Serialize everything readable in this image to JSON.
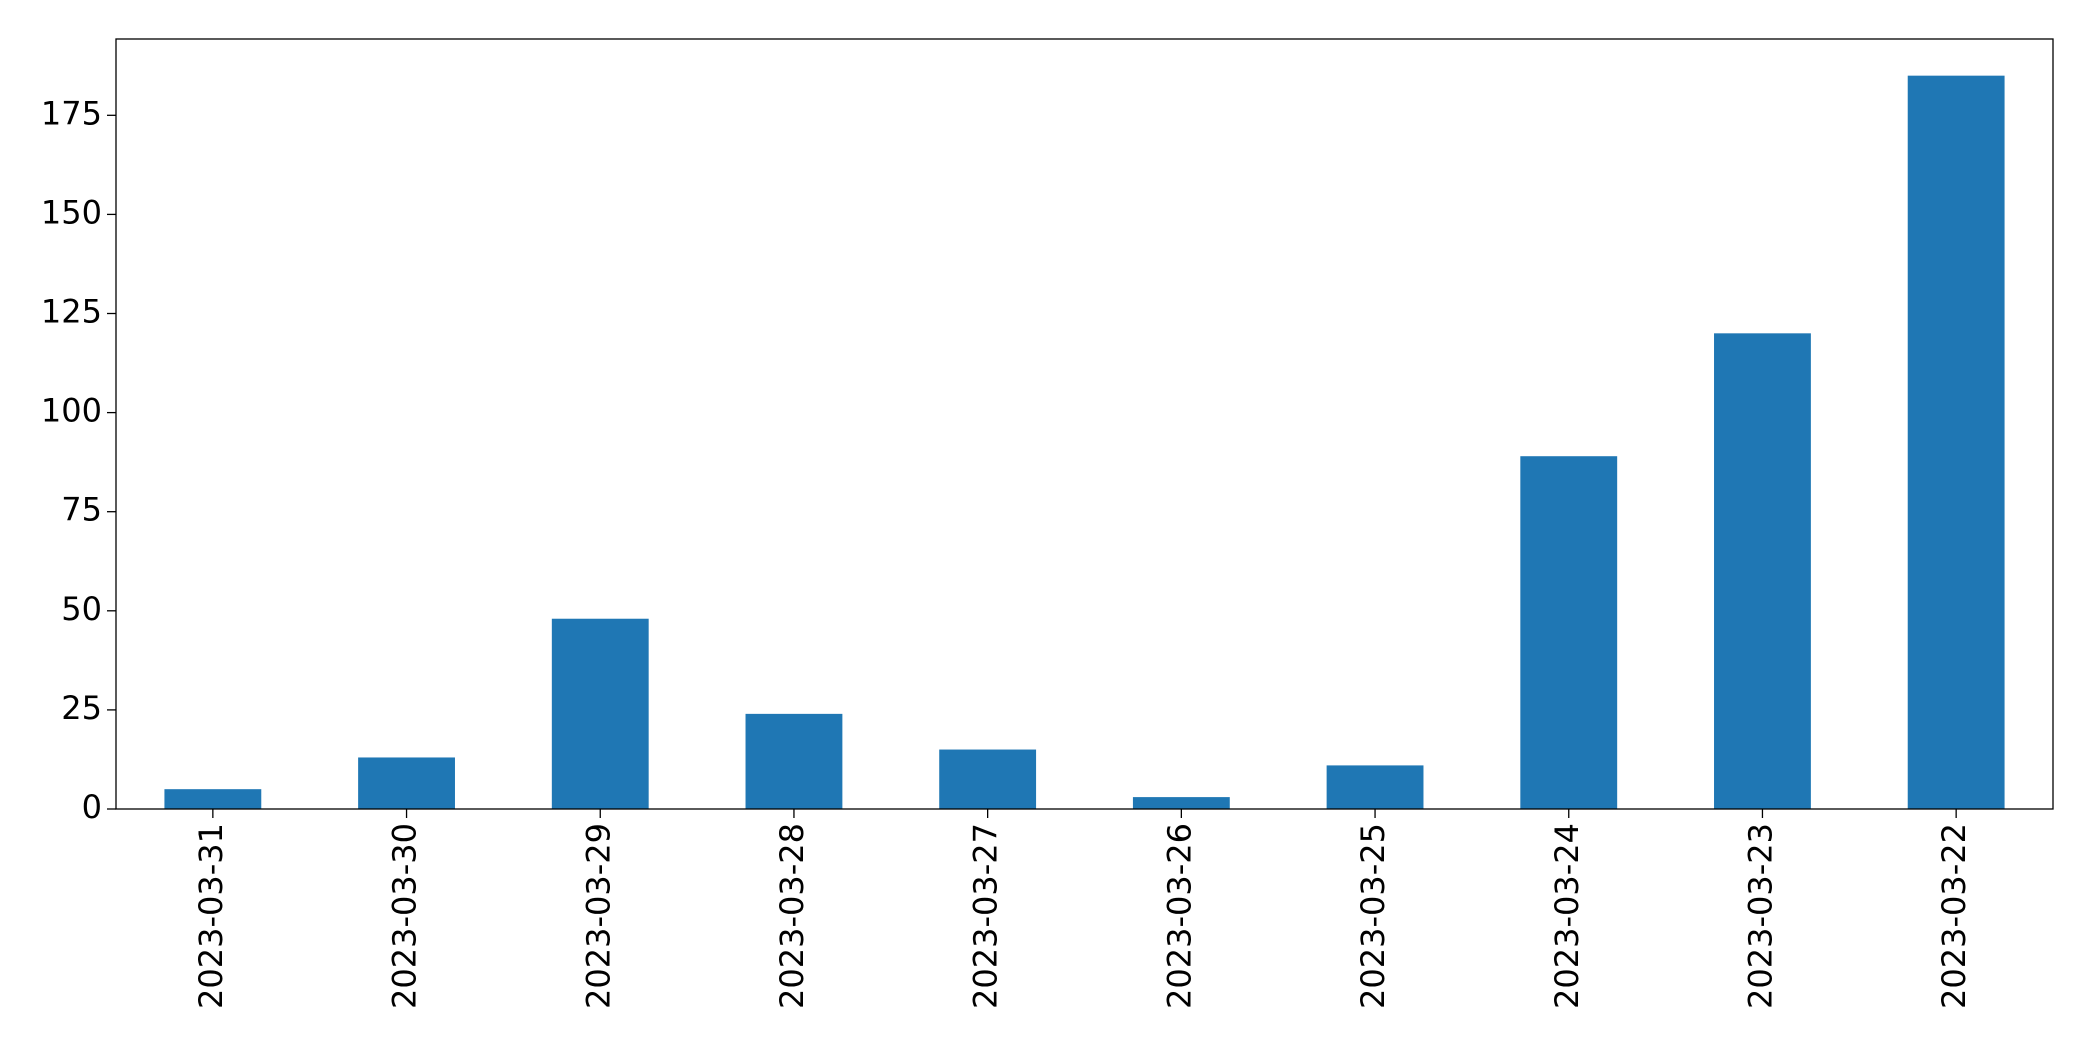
{
  "chart_data": {
    "type": "bar",
    "categories": [
      "2023-03-31",
      "2023-03-30",
      "2023-03-29",
      "2023-03-28",
      "2023-03-27",
      "2023-03-26",
      "2023-03-25",
      "2023-03-24",
      "2023-03-23",
      "2023-03-22"
    ],
    "values": [
      5,
      13,
      48,
      24,
      15,
      3,
      11,
      89,
      120,
      185
    ],
    "color": "#1f77b4",
    "ylim": [
      0,
      194.25
    ],
    "yticks": [
      0,
      25,
      50,
      75,
      100,
      125,
      150,
      175
    ],
    "grid": false
  }
}
